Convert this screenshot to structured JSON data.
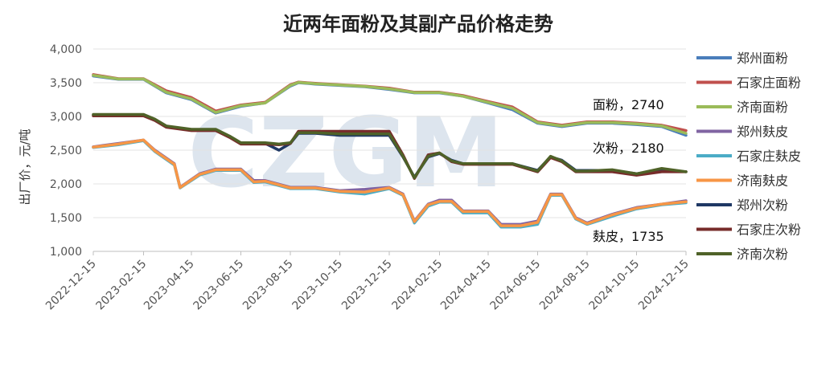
{
  "chart_data": {
    "type": "line",
    "title": "近两年面粉及其副产品价格走势",
    "ylabel": "出厂价，元/吨",
    "watermark": "CZGM",
    "ylim": [
      1000,
      4000
    ],
    "y_ticks": [
      "1,000",
      "1,500",
      "2,000",
      "2,500",
      "3,000",
      "3,500",
      "4,000"
    ],
    "x_ticks": [
      "2022-12-15",
      "2023-02-15",
      "2023-04-15",
      "2023-06-15",
      "2023-08-15",
      "2023-10-15",
      "2023-12-15",
      "2024-02-15",
      "2024-04-15",
      "2024-06-15",
      "2024-08-15",
      "2024-10-15",
      "2024-12-15"
    ],
    "annotations": [
      "面粉，2740",
      "次粉，2180",
      "麸皮，1735"
    ],
    "grid": true,
    "legend_position": "right",
    "series": [
      {
        "name": "郑州面粉",
        "color": "#4a7ebb",
        "x": [
          "2022-12-15",
          "2023-01-15",
          "2023-02-15",
          "2023-03-15",
          "2023-04-15",
          "2023-05-15",
          "2023-06-15",
          "2023-07-15",
          "2023-08-15",
          "2023-08-25",
          "2023-09-15",
          "2023-10-15",
          "2023-11-15",
          "2023-12-15",
          "2024-01-15",
          "2024-02-15",
          "2024-03-15",
          "2024-04-15",
          "2024-05-15",
          "2024-06-15",
          "2024-07-15",
          "2024-08-15",
          "2024-09-15",
          "2024-10-15",
          "2024-11-15",
          "2024-12-15"
        ],
        "y": [
          3600,
          3550,
          3550,
          3350,
          3250,
          3050,
          3150,
          3200,
          3450,
          3500,
          3480,
          3460,
          3440,
          3400,
          3350,
          3350,
          3300,
          3200,
          3100,
          2900,
          2850,
          2900,
          2900,
          2880,
          2850,
          2720
        ]
      },
      {
        "name": "石家庄面粉",
        "color": "#c0504d",
        "x": [
          "2022-12-15",
          "2023-01-15",
          "2023-02-15",
          "2023-03-15",
          "2023-04-15",
          "2023-05-15",
          "2023-06-15",
          "2023-07-15",
          "2023-08-15",
          "2023-08-25",
          "2023-09-15",
          "2023-10-15",
          "2023-11-15",
          "2023-12-15",
          "2024-01-15",
          "2024-02-15",
          "2024-03-15",
          "2024-04-15",
          "2024-05-15",
          "2024-06-15",
          "2024-07-15",
          "2024-08-15",
          "2024-09-15",
          "2024-10-15",
          "2024-11-15",
          "2024-12-15"
        ],
        "y": [
          3620,
          3560,
          3560,
          3380,
          3280,
          3080,
          3170,
          3210,
          3470,
          3510,
          3490,
          3470,
          3450,
          3420,
          3360,
          3360,
          3310,
          3220,
          3140,
          2920,
          2870,
          2920,
          2920,
          2900,
          2870,
          2790
        ]
      },
      {
        "name": "济南面粉",
        "color": "#9bbb59",
        "x": [
          "2022-12-15",
          "2023-01-15",
          "2023-02-15",
          "2023-03-15",
          "2023-04-15",
          "2023-05-15",
          "2023-06-15",
          "2023-07-15",
          "2023-08-15",
          "2023-08-25",
          "2023-09-15",
          "2023-10-15",
          "2023-11-15",
          "2023-12-15",
          "2024-01-15",
          "2024-02-15",
          "2024-03-15",
          "2024-04-15",
          "2024-05-15",
          "2024-06-15",
          "2024-07-15",
          "2024-08-15",
          "2024-09-15",
          "2024-10-15",
          "2024-11-15",
          "2024-12-15"
        ],
        "y": [
          3610,
          3555,
          3555,
          3360,
          3260,
          3060,
          3160,
          3200,
          3460,
          3505,
          3485,
          3465,
          3445,
          3410,
          3355,
          3355,
          3300,
          3210,
          3120,
          2910,
          2860,
          2910,
          2910,
          2890,
          2860,
          2750
        ]
      },
      {
        "name": "郑州麸皮",
        "color": "#8064a2",
        "x": [
          "2022-12-15",
          "2023-01-15",
          "2023-02-15",
          "2023-03-01",
          "2023-03-25",
          "2023-04-01",
          "2023-04-25",
          "2023-05-15",
          "2023-06-15",
          "2023-07-01",
          "2023-07-15",
          "2023-08-15",
          "2023-09-15",
          "2023-10-15",
          "2023-11-15",
          "2023-12-15",
          "2024-01-01",
          "2024-01-15",
          "2024-02-01",
          "2024-02-15",
          "2024-03-01",
          "2024-03-15",
          "2024-04-15",
          "2024-05-01",
          "2024-05-25",
          "2024-06-15",
          "2024-07-01",
          "2024-07-15",
          "2024-08-01",
          "2024-08-15",
          "2024-09-15",
          "2024-10-15",
          "2024-11-15",
          "2024-12-15"
        ],
        "y": [
          2550,
          2600,
          2650,
          2500,
          2300,
          1950,
          2150,
          2220,
          2220,
          2050,
          2050,
          1950,
          1950,
          1900,
          1920,
          1950,
          1850,
          1450,
          1700,
          1760,
          1760,
          1600,
          1600,
          1400,
          1400,
          1450,
          1850,
          1850,
          1500,
          1420,
          1550,
          1650,
          1700,
          1750
        ]
      },
      {
        "name": "石家庄麸皮",
        "color": "#4bacc6",
        "x": [
          "2022-12-15",
          "2023-01-15",
          "2023-02-15",
          "2023-03-01",
          "2023-03-25",
          "2023-04-01",
          "2023-04-25",
          "2023-05-15",
          "2023-06-15",
          "2023-07-01",
          "2023-07-15",
          "2023-08-15",
          "2023-09-15",
          "2023-10-15",
          "2023-11-15",
          "2023-12-15",
          "2024-01-01",
          "2024-01-15",
          "2024-02-01",
          "2024-02-15",
          "2024-03-01",
          "2024-03-15",
          "2024-04-15",
          "2024-05-01",
          "2024-05-25",
          "2024-06-15",
          "2024-07-01",
          "2024-07-15",
          "2024-08-01",
          "2024-08-15",
          "2024-09-15",
          "2024-10-15",
          "2024-11-15",
          "2024-12-15"
        ],
        "y": [
          2540,
          2580,
          2640,
          2480,
          2280,
          1940,
          2130,
          2200,
          2200,
          2020,
          2030,
          1930,
          1930,
          1880,
          1850,
          1930,
          1830,
          1420,
          1670,
          1730,
          1730,
          1570,
          1570,
          1360,
          1360,
          1400,
          1830,
          1830,
          1480,
          1400,
          1520,
          1630,
          1690,
          1720
        ]
      },
      {
        "name": "济南麸皮",
        "color": "#f79646",
        "x": [
          "2022-12-15",
          "2023-01-15",
          "2023-02-15",
          "2023-03-01",
          "2023-03-25",
          "2023-04-01",
          "2023-04-25",
          "2023-05-15",
          "2023-06-15",
          "2023-07-01",
          "2023-07-15",
          "2023-08-15",
          "2023-09-15",
          "2023-10-15",
          "2023-11-15",
          "2023-12-15",
          "2024-01-01",
          "2024-01-15",
          "2024-02-01",
          "2024-02-15",
          "2024-03-01",
          "2024-03-15",
          "2024-04-15",
          "2024-05-01",
          "2024-05-25",
          "2024-06-15",
          "2024-07-01",
          "2024-07-15",
          "2024-08-01",
          "2024-08-15",
          "2024-09-15",
          "2024-10-15",
          "2024-11-15",
          "2024-12-15"
        ],
        "y": [
          2545,
          2590,
          2650,
          2490,
          2290,
          1945,
          2140,
          2210,
          2210,
          2030,
          2040,
          1940,
          1940,
          1890,
          1880,
          1940,
          1840,
          1440,
          1690,
          1740,
          1740,
          1590,
          1590,
          1380,
          1380,
          1430,
          1840,
          1840,
          1490,
          1410,
          1540,
          1640,
          1700,
          1735
        ]
      },
      {
        "name": "郑州次粉",
        "color": "#1f3864",
        "x": [
          "2022-12-15",
          "2023-01-15",
          "2023-02-15",
          "2023-03-01",
          "2023-03-15",
          "2023-04-15",
          "2023-05-15",
          "2023-06-01",
          "2023-06-15",
          "2023-07-15",
          "2023-08-01",
          "2023-08-15",
          "2023-08-25",
          "2023-09-15",
          "2023-10-15",
          "2023-11-15",
          "2023-12-15",
          "2024-01-01",
          "2024-01-15",
          "2024-02-01",
          "2024-02-15",
          "2024-03-01",
          "2024-03-15",
          "2024-04-15",
          "2024-05-15",
          "2024-06-15",
          "2024-07-01",
          "2024-07-15",
          "2024-08-01",
          "2024-08-15",
          "2024-09-15",
          "2024-10-15",
          "2024-11-15",
          "2024-12-15"
        ],
        "y": [
          3020,
          3020,
          3020,
          2950,
          2850,
          2800,
          2800,
          2700,
          2600,
          2600,
          2500,
          2600,
          2750,
          2750,
          2720,
          2720,
          2720,
          2400,
          2100,
          2400,
          2450,
          2350,
          2300,
          2300,
          2300,
          2200,
          2400,
          2350,
          2200,
          2200,
          2200,
          2150,
          2200,
          2180
        ]
      },
      {
        "name": "石家庄次粉",
        "color": "#772c2a",
        "x": [
          "2022-12-15",
          "2023-01-15",
          "2023-02-15",
          "2023-03-01",
          "2023-03-15",
          "2023-04-15",
          "2023-05-15",
          "2023-06-01",
          "2023-06-15",
          "2023-07-15",
          "2023-08-01",
          "2023-08-15",
          "2023-08-25",
          "2023-09-15",
          "2023-10-15",
          "2023-11-15",
          "2023-12-15",
          "2024-01-01",
          "2024-01-15",
          "2024-02-01",
          "2024-02-15",
          "2024-03-01",
          "2024-03-15",
          "2024-04-15",
          "2024-05-15",
          "2024-06-15",
          "2024-07-01",
          "2024-07-15",
          "2024-08-01",
          "2024-08-15",
          "2024-09-15",
          "2024-10-15",
          "2024-11-15",
          "2024-12-15"
        ],
        "y": [
          3010,
          3010,
          3010,
          2940,
          2840,
          2790,
          2790,
          2690,
          2590,
          2590,
          2580,
          2600,
          2780,
          2780,
          2780,
          2780,
          2780,
          2430,
          2080,
          2430,
          2460,
          2330,
          2290,
          2290,
          2290,
          2180,
          2390,
          2330,
          2180,
          2180,
          2180,
          2130,
          2180,
          2180
        ]
      },
      {
        "name": "济南次粉",
        "color": "#4f6228",
        "x": [
          "2022-12-15",
          "2023-01-15",
          "2023-02-15",
          "2023-03-01",
          "2023-03-15",
          "2023-04-15",
          "2023-05-15",
          "2023-06-01",
          "2023-06-15",
          "2023-07-15",
          "2023-08-01",
          "2023-08-15",
          "2023-08-25",
          "2023-09-15",
          "2023-10-15",
          "2023-11-15",
          "2023-12-15",
          "2024-01-01",
          "2024-01-15",
          "2024-02-01",
          "2024-02-15",
          "2024-03-01",
          "2024-03-15",
          "2024-04-15",
          "2024-05-15",
          "2024-06-15",
          "2024-07-01",
          "2024-07-15",
          "2024-08-01",
          "2024-08-15",
          "2024-09-15",
          "2024-10-15",
          "2024-11-15",
          "2024-12-15"
        ],
        "y": [
          3030,
          3030,
          3030,
          2960,
          2860,
          2810,
          2810,
          2710,
          2610,
          2610,
          2590,
          2610,
          2760,
          2760,
          2740,
          2740,
          2740,
          2410,
          2090,
          2410,
          2460,
          2340,
          2300,
          2300,
          2300,
          2190,
          2410,
          2340,
          2190,
          2190,
          2210,
          2150,
          2230,
          2180
        ]
      }
    ]
  }
}
